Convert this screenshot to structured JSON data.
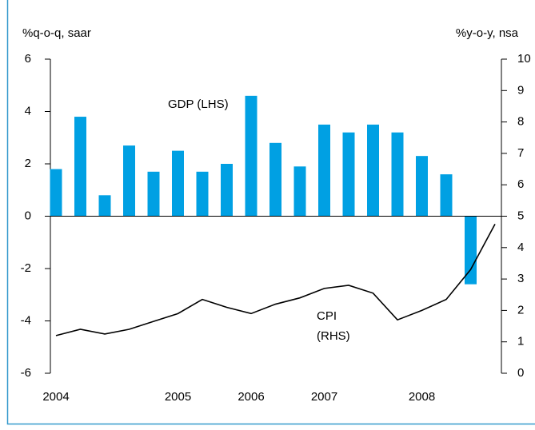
{
  "chart_data": {
    "type": "bar",
    "y_label": "%q-o-q, saar",
    "y2_label": "%y-o-y, nsa",
    "categories": [
      "2004",
      null,
      null,
      null,
      null,
      "2005",
      null,
      null,
      "2006",
      null,
      null,
      "2007",
      null,
      null,
      null,
      "2008",
      null,
      null,
      null
    ],
    "series": [
      {
        "type": "bar",
        "axis": "y",
        "color": "#00a0e3",
        "values": [
          1.8,
          3.8,
          0.8,
          2.7,
          1.7,
          2.5,
          1.7,
          2.0,
          4.6,
          2.8,
          1.9,
          3.5,
          3.2,
          3.5,
          3.2,
          2.3,
          1.6,
          -2.6,
          null
        ]
      },
      {
        "type": "line",
        "axis": "y2",
        "color": "#000000",
        "values": [
          1.2,
          1.4,
          1.25,
          1.4,
          1.65,
          1.9,
          2.35,
          2.1,
          1.9,
          2.2,
          2.4,
          2.7,
          2.8,
          2.55,
          1.7,
          2.0,
          2.35,
          3.3,
          4.75
        ]
      }
    ],
    "annotations": [
      "GDP (LHS)",
      "CPI",
      "(RHS)"
    ],
    "ylim": [
      -6,
      6
    ],
    "yticks": [
      -6,
      -4,
      -2,
      0,
      2,
      4,
      6
    ],
    "y2lim": [
      0,
      10
    ],
    "y2ticks": [
      0,
      1,
      2,
      3,
      4,
      5,
      6,
      7,
      8,
      9,
      10
    ],
    "frame_color": "#3399cc"
  }
}
